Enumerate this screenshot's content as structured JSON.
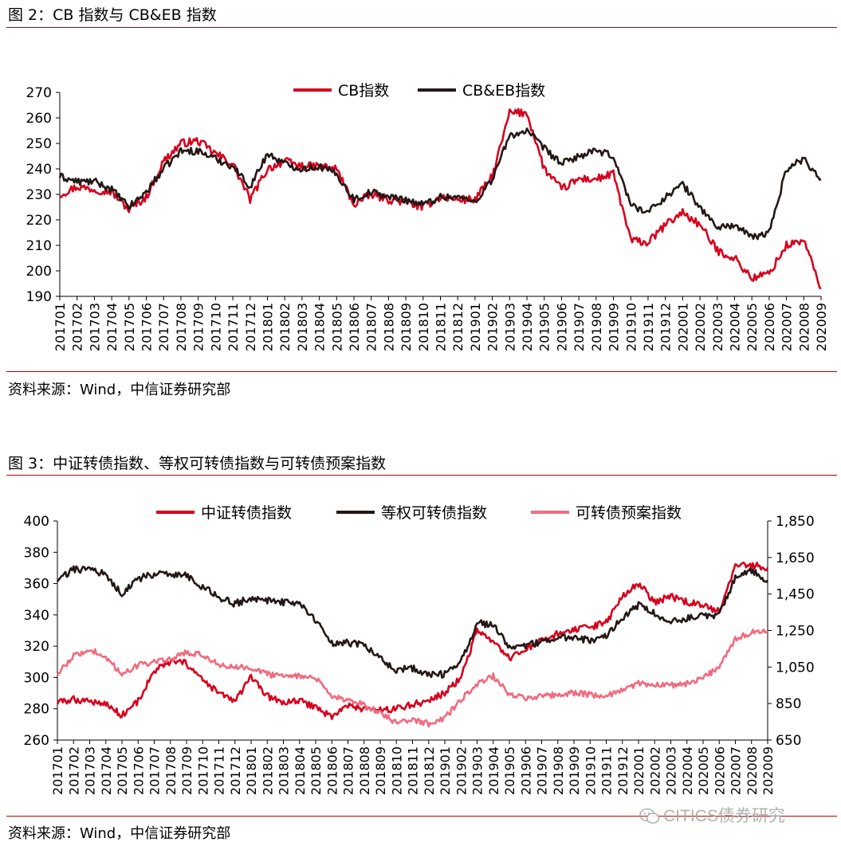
{
  "figures": [
    {
      "title": "图 2：CB 指数与 CB&EB 指数",
      "source": "资料来源：Wind，中信证券研究部"
    },
    {
      "title": "图 3：中证转债指数、等权可转债指数与可转债预案指数",
      "source": "资料来源：Wind，中信证券研究部"
    }
  ],
  "watermark": {
    "text": "CITICS债券研究",
    "icon": "wechat-icon"
  },
  "colors": {
    "red": "#d7001d",
    "black": "#231815",
    "pink": "#f06b7e",
    "rule": "#c00000"
  },
  "chart_data": [
    {
      "type": "line",
      "categories": [
        "201701",
        "201702",
        "201703",
        "201704",
        "201705",
        "201706",
        "201707",
        "201708",
        "201709",
        "201710",
        "201711",
        "201712",
        "201801",
        "201802",
        "201803",
        "201804",
        "201805",
        "201806",
        "201807",
        "201808",
        "201809",
        "201810",
        "201811",
        "201812",
        "201901",
        "201902",
        "201903",
        "201904",
        "201905",
        "201906",
        "201907",
        "201908",
        "201909",
        "201910",
        "201911",
        "201912",
        "202001",
        "202002",
        "202003",
        "202004",
        "202005",
        "202006",
        "202007",
        "202008",
        "202009"
      ],
      "y_ticks": [
        "190",
        "200",
        "210",
        "220",
        "230",
        "240",
        "250",
        "260",
        "270"
      ],
      "ylim": [
        190,
        270
      ],
      "legend_position": "top-center",
      "grid": false,
      "series": [
        {
          "name": "CB指数",
          "color": "#d7001d",
          "values": [
            230,
            233,
            232,
            231,
            224,
            229,
            243,
            250,
            251,
            246,
            242,
            228,
            240,
            243,
            241,
            241,
            240,
            226,
            230,
            228,
            227,
            225,
            229,
            228,
            228,
            237,
            262,
            262,
            240,
            232,
            236,
            236,
            238,
            212,
            211,
            218,
            223,
            218,
            208,
            205,
            197,
            199,
            210,
            212,
            193
          ]
        },
        {
          "name": "CB&EB指数",
          "color": "#231815",
          "values": [
            237,
            235,
            235,
            232,
            225,
            231,
            240,
            247,
            247,
            244,
            241,
            233,
            246,
            242,
            240,
            241,
            238,
            228,
            231,
            229,
            228,
            226,
            229,
            229,
            227,
            236,
            253,
            255,
            248,
            242,
            245,
            247,
            245,
            226,
            223,
            229,
            234,
            225,
            217,
            218,
            213,
            215,
            240,
            244,
            236
          ]
        }
      ]
    },
    {
      "type": "line",
      "categories": [
        "201701",
        "201702",
        "201703",
        "201704",
        "201705",
        "201706",
        "201707",
        "201708",
        "201709",
        "201710",
        "201711",
        "201712",
        "201801",
        "201802",
        "201803",
        "201804",
        "201805",
        "201806",
        "201807",
        "201808",
        "201809",
        "201810",
        "201811",
        "201812",
        "201901",
        "201902",
        "201903",
        "201904",
        "201905",
        "201906",
        "201907",
        "201908",
        "201909",
        "201910",
        "201911",
        "201912",
        "202001",
        "202002",
        "202003",
        "202004",
        "202005",
        "202006",
        "202007",
        "202008",
        "202009"
      ],
      "y_ticks": [
        "260",
        "280",
        "300",
        "320",
        "340",
        "360",
        "380",
        "400"
      ],
      "ylim": [
        260,
        400
      ],
      "y2_ticks": [
        "650",
        "850",
        "1,050",
        "1,250",
        "1,450",
        "1,650",
        "1,850"
      ],
      "y2lim": [
        650,
        1850
      ],
      "legend_position": "top-center",
      "grid": false,
      "series": [
        {
          "name": "中证转债指数",
          "color": "#d7001d",
          "axis": "left",
          "values": [
            284,
            286,
            285,
            283,
            276,
            285,
            304,
            310,
            309,
            298,
            290,
            285,
            300,
            288,
            284,
            285,
            281,
            275,
            282,
            280,
            279,
            280,
            283,
            285,
            290,
            300,
            330,
            322,
            312,
            318,
            323,
            328,
            330,
            332,
            335,
            352,
            360,
            348,
            352,
            348,
            346,
            342,
            372,
            372,
            370
          ]
        },
        {
          "name": "等权可转债指数",
          "color": "#231815",
          "axis": "left",
          "values": [
            362,
            369,
            369,
            366,
            353,
            363,
            366,
            366,
            365,
            358,
            351,
            347,
            351,
            349,
            348,
            347,
            337,
            322,
            322,
            321,
            312,
            305,
            306,
            302,
            302,
            310,
            335,
            333,
            320,
            320,
            323,
            326,
            325,
            324,
            326,
            338,
            346,
            341,
            336,
            338,
            339,
            340,
            364,
            368,
            362
          ]
        },
        {
          "name": "可转债预案指数",
          "color": "#f06b7e",
          "axis": "right",
          "values": [
            1010,
            1110,
            1150,
            1100,
            1010,
            1060,
            1080,
            1090,
            1130,
            1120,
            1060,
            1050,
            1050,
            1010,
            1000,
            1000,
            990,
            880,
            875,
            840,
            800,
            745,
            760,
            740,
            770,
            870,
            960,
            1000,
            900,
            880,
            890,
            900,
            910,
            900,
            890,
            930,
            960,
            950,
            950,
            960,
            990,
            1050,
            1200,
            1240,
            1250
          ]
        }
      ]
    }
  ]
}
